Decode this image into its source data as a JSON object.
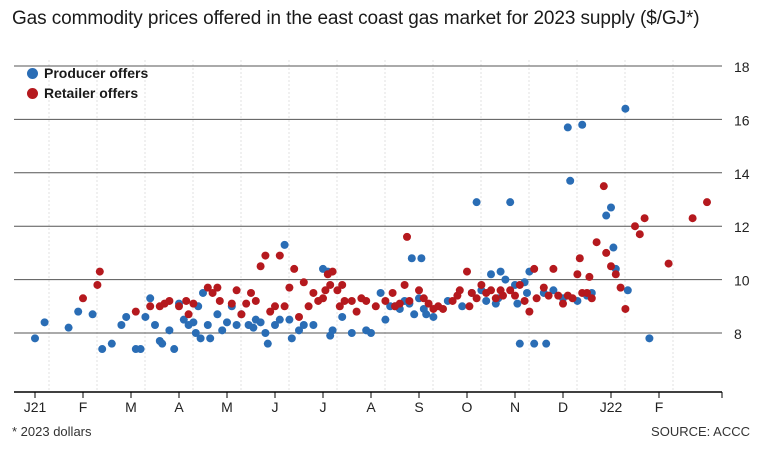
{
  "title": "Gas commodity prices offered in the east coast gas market for 2023 supply ($/GJ*)",
  "footnote": "* 2023 dollars",
  "source": "SOURCE: ACCC",
  "legend": {
    "producer": "Producer offers",
    "retailer": "Retailer offers"
  },
  "colors": {
    "producer": "#2a6db5",
    "retailer": "#b5191e",
    "grid": "#555555",
    "month_grid": "#e2e2e2",
    "axis": "#000000"
  },
  "chart_data": {
    "type": "scatter",
    "title": "Gas commodity prices offered in the east coast gas market for 2023 supply ($/GJ*)",
    "xlabel": "",
    "ylabel": "",
    "ylim": [
      6.5,
      18
    ],
    "y_ticks": [
      8,
      10,
      12,
      14,
      16,
      18
    ],
    "x_ticks": [
      "J21",
      "F",
      "M",
      "A",
      "M",
      "J",
      "J",
      "A",
      "S",
      "O",
      "N",
      "D",
      "J22",
      "F"
    ],
    "x_domain_months": [
      0,
      14
    ],
    "grid": true,
    "legend_position": "top-left",
    "series": [
      {
        "name": "Producer offers",
        "color": "#2a6db5",
        "points": [
          [
            0.0,
            7.8
          ],
          [
            0.2,
            8.4
          ],
          [
            0.7,
            8.2
          ],
          [
            0.9,
            8.8
          ],
          [
            1.2,
            8.7
          ],
          [
            1.4,
            7.4
          ],
          [
            1.6,
            7.6
          ],
          [
            1.8,
            8.3
          ],
          [
            1.9,
            8.6
          ],
          [
            2.1,
            7.4
          ],
          [
            2.2,
            7.4
          ],
          [
            2.3,
            8.6
          ],
          [
            2.4,
            9.3
          ],
          [
            2.5,
            8.3
          ],
          [
            2.6,
            7.7
          ],
          [
            2.65,
            7.6
          ],
          [
            2.8,
            8.1
          ],
          [
            2.9,
            7.4
          ],
          [
            3.0,
            9.1
          ],
          [
            3.1,
            8.5
          ],
          [
            3.2,
            8.3
          ],
          [
            3.3,
            8.4
          ],
          [
            3.35,
            8.0
          ],
          [
            3.4,
            9.0
          ],
          [
            3.45,
            7.8
          ],
          [
            3.5,
            9.5
          ],
          [
            3.6,
            8.3
          ],
          [
            3.65,
            7.8
          ],
          [
            3.8,
            8.7
          ],
          [
            3.9,
            8.1
          ],
          [
            4.0,
            8.4
          ],
          [
            4.1,
            9.0
          ],
          [
            4.2,
            8.3
          ],
          [
            4.3,
            8.7
          ],
          [
            4.45,
            8.3
          ],
          [
            4.55,
            8.2
          ],
          [
            4.6,
            8.5
          ],
          [
            4.7,
            8.4
          ],
          [
            4.8,
            8.0
          ],
          [
            4.85,
            7.6
          ],
          [
            5.0,
            8.3
          ],
          [
            5.1,
            8.5
          ],
          [
            5.2,
            11.3
          ],
          [
            5.3,
            8.5
          ],
          [
            5.35,
            7.8
          ],
          [
            5.5,
            8.1
          ],
          [
            5.6,
            8.3
          ],
          [
            5.8,
            8.3
          ],
          [
            6.0,
            10.4
          ],
          [
            6.1,
            10.3
          ],
          [
            6.15,
            7.9
          ],
          [
            6.2,
            8.1
          ],
          [
            6.4,
            8.6
          ],
          [
            6.6,
            8.0
          ],
          [
            6.9,
            8.1
          ],
          [
            7.0,
            8.0
          ],
          [
            7.2,
            9.5
          ],
          [
            7.3,
            8.5
          ],
          [
            7.4,
            9.0
          ],
          [
            7.5,
            9.0
          ],
          [
            7.6,
            8.9
          ],
          [
            7.7,
            9.2
          ],
          [
            7.8,
            9.1
          ],
          [
            7.85,
            10.8
          ],
          [
            7.9,
            8.7
          ],
          [
            8.0,
            9.3
          ],
          [
            8.05,
            10.8
          ],
          [
            8.1,
            8.9
          ],
          [
            8.15,
            8.7
          ],
          [
            8.3,
            8.6
          ],
          [
            8.6,
            9.2
          ],
          [
            8.9,
            9.0
          ],
          [
            9.1,
            9.5
          ],
          [
            9.2,
            12.9
          ],
          [
            9.3,
            9.6
          ],
          [
            9.4,
            9.2
          ],
          [
            9.5,
            10.2
          ],
          [
            9.6,
            9.1
          ],
          [
            9.65,
            9.3
          ],
          [
            9.7,
            10.3
          ],
          [
            9.8,
            10.0
          ],
          [
            9.9,
            12.9
          ],
          [
            10.0,
            9.8
          ],
          [
            10.05,
            9.1
          ],
          [
            10.1,
            7.6
          ],
          [
            10.2,
            9.9
          ],
          [
            10.25,
            9.5
          ],
          [
            10.3,
            10.3
          ],
          [
            10.4,
            7.6
          ],
          [
            10.6,
            9.5
          ],
          [
            10.65,
            7.6
          ],
          [
            10.8,
            9.6
          ],
          [
            11.0,
            9.3
          ],
          [
            11.1,
            15.7
          ],
          [
            11.15,
            13.7
          ],
          [
            11.3,
            9.2
          ],
          [
            11.4,
            15.8
          ],
          [
            11.5,
            9.4
          ],
          [
            11.6,
            9.5
          ],
          [
            11.9,
            12.4
          ],
          [
            12.0,
            12.7
          ],
          [
            12.05,
            11.2
          ],
          [
            12.1,
            10.4
          ],
          [
            12.3,
            16.4
          ],
          [
            12.35,
            9.6
          ],
          [
            12.8,
            7.8
          ]
        ]
      },
      {
        "name": "Retailer offers",
        "color": "#b5191e",
        "points": [
          [
            1.0,
            9.3
          ],
          [
            1.3,
            9.8
          ],
          [
            1.35,
            10.3
          ],
          [
            2.1,
            8.8
          ],
          [
            2.4,
            9.0
          ],
          [
            2.6,
            9.0
          ],
          [
            2.7,
            9.1
          ],
          [
            2.8,
            9.2
          ],
          [
            3.0,
            9.0
          ],
          [
            3.15,
            9.2
          ],
          [
            3.2,
            8.7
          ],
          [
            3.3,
            9.1
          ],
          [
            3.6,
            9.7
          ],
          [
            3.7,
            9.5
          ],
          [
            3.8,
            9.7
          ],
          [
            3.85,
            9.2
          ],
          [
            4.1,
            9.1
          ],
          [
            4.2,
            9.6
          ],
          [
            4.3,
            8.7
          ],
          [
            4.4,
            9.1
          ],
          [
            4.5,
            9.5
          ],
          [
            4.6,
            9.2
          ],
          [
            4.7,
            10.5
          ],
          [
            4.8,
            10.9
          ],
          [
            4.9,
            8.8
          ],
          [
            5.0,
            9.0
          ],
          [
            5.1,
            10.9
          ],
          [
            5.2,
            9.0
          ],
          [
            5.3,
            9.7
          ],
          [
            5.4,
            10.4
          ],
          [
            5.5,
            8.6
          ],
          [
            5.6,
            9.9
          ],
          [
            5.7,
            9.0
          ],
          [
            5.8,
            9.5
          ],
          [
            5.9,
            9.2
          ],
          [
            6.0,
            9.3
          ],
          [
            6.05,
            9.6
          ],
          [
            6.1,
            10.2
          ],
          [
            6.15,
            9.8
          ],
          [
            6.2,
            10.3
          ],
          [
            6.3,
            9.6
          ],
          [
            6.35,
            9.0
          ],
          [
            6.4,
            9.8
          ],
          [
            6.45,
            9.2
          ],
          [
            6.6,
            9.2
          ],
          [
            6.7,
            8.8
          ],
          [
            6.8,
            9.3
          ],
          [
            6.9,
            9.2
          ],
          [
            7.1,
            9.0
          ],
          [
            7.3,
            9.2
          ],
          [
            7.45,
            9.5
          ],
          [
            7.5,
            9.0
          ],
          [
            7.6,
            9.1
          ],
          [
            7.7,
            9.8
          ],
          [
            7.75,
            11.6
          ],
          [
            7.8,
            9.2
          ],
          [
            8.0,
            9.6
          ],
          [
            8.1,
            9.3
          ],
          [
            8.2,
            9.1
          ],
          [
            8.3,
            8.9
          ],
          [
            8.4,
            9.0
          ],
          [
            8.5,
            8.9
          ],
          [
            8.7,
            9.2
          ],
          [
            8.8,
            9.4
          ],
          [
            8.85,
            9.6
          ],
          [
            9.0,
            10.3
          ],
          [
            9.05,
            9.0
          ],
          [
            9.1,
            9.5
          ],
          [
            9.2,
            9.3
          ],
          [
            9.3,
            9.8
          ],
          [
            9.4,
            9.5
          ],
          [
            9.5,
            9.6
          ],
          [
            9.6,
            9.3
          ],
          [
            9.7,
            9.6
          ],
          [
            9.75,
            9.4
          ],
          [
            9.9,
            9.6
          ],
          [
            10.0,
            9.4
          ],
          [
            10.1,
            9.8
          ],
          [
            10.2,
            9.2
          ],
          [
            10.3,
            8.8
          ],
          [
            10.4,
            10.4
          ],
          [
            10.45,
            9.3
          ],
          [
            10.6,
            9.7
          ],
          [
            10.7,
            9.4
          ],
          [
            10.8,
            10.4
          ],
          [
            10.9,
            9.4
          ],
          [
            11.0,
            9.1
          ],
          [
            11.1,
            9.4
          ],
          [
            11.2,
            9.3
          ],
          [
            11.3,
            10.2
          ],
          [
            11.35,
            10.8
          ],
          [
            11.4,
            9.5
          ],
          [
            11.5,
            9.5
          ],
          [
            11.55,
            10.1
          ],
          [
            11.6,
            9.3
          ],
          [
            11.7,
            11.4
          ],
          [
            11.85,
            13.5
          ],
          [
            11.9,
            11.0
          ],
          [
            12.0,
            10.5
          ],
          [
            12.1,
            10.2
          ],
          [
            12.2,
            9.7
          ],
          [
            12.3,
            8.9
          ],
          [
            12.5,
            12.0
          ],
          [
            12.6,
            11.7
          ],
          [
            12.7,
            12.3
          ],
          [
            13.2,
            10.6
          ],
          [
            13.7,
            12.3
          ],
          [
            14.0,
            12.9
          ]
        ]
      }
    ]
  }
}
